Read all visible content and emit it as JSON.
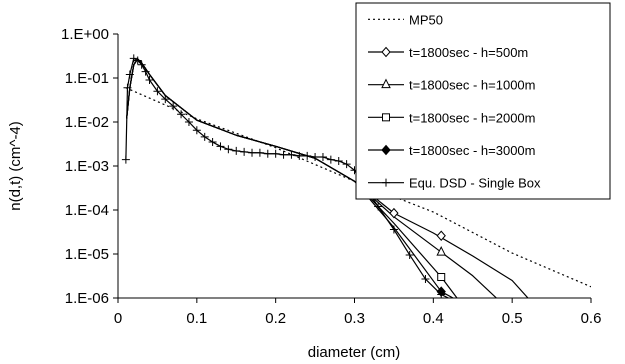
{
  "chart_data": {
    "type": "line",
    "title": "",
    "xlabel": "diameter (cm)",
    "ylabel": "n(d,t) (cm^-4)",
    "xlim": [
      0,
      0.6
    ],
    "x_ticks": [
      0,
      0.1,
      0.2,
      0.3,
      0.4,
      0.5,
      0.6
    ],
    "x_tick_labels": [
      "0",
      "0.1",
      "0.2",
      "0.3",
      "0.4",
      "0.5",
      "0.6"
    ],
    "yscale": "log",
    "ylim": [
      1e-06,
      1
    ],
    "y_ticks": [
      1,
      0.1,
      0.01,
      0.001,
      0.0001,
      1e-05,
      1e-06
    ],
    "y_tick_labels": [
      "1.E+00",
      "1.E-01",
      "1.E-02",
      "1.E-03",
      "1.E-04",
      "1.E-05",
      "1.E-06"
    ],
    "grid": false,
    "legend_position": "top-right",
    "series": [
      {
        "name": "MP50",
        "line_style": "dotted",
        "marker": "none",
        "color": "#000000",
        "x": [
          0.01,
          0.1,
          0.2,
          0.3,
          0.4,
          0.5,
          0.6
        ],
        "y": [
          0.06,
          0.0118,
          0.0026,
          0.00045,
          9e-05,
          1.05e-05,
          1.8e-06
        ]
      },
      {
        "name": "t=1800sec - h=500m",
        "line_style": "solid",
        "marker": "diamond-open",
        "color": "#000000",
        "x": [
          0.011,
          0.015,
          0.02,
          0.025,
          0.03,
          0.04,
          0.06,
          0.1,
          0.15,
          0.2,
          0.25,
          0.3,
          0.35,
          0.4,
          0.45,
          0.5,
          0.52
        ],
        "y": [
          0.012,
          0.06,
          0.2,
          0.27,
          0.22,
          0.12,
          0.04,
          0.011,
          0.005,
          0.0028,
          0.0015,
          0.00045,
          8.5e-05,
          3e-05,
          9e-06,
          2.5e-06,
          1e-06
        ],
        "marker_x": [
          0.35,
          0.41
        ],
        "marker_y": [
          8.5e-05,
          2.6e-05
        ]
      },
      {
        "name": "t=1800sec - h=1000m",
        "line_style": "solid",
        "marker": "triangle-open",
        "color": "#000000",
        "x": [
          0.011,
          0.015,
          0.02,
          0.025,
          0.03,
          0.04,
          0.06,
          0.1,
          0.15,
          0.2,
          0.25,
          0.3,
          0.35,
          0.41,
          0.45,
          0.48
        ],
        "y": [
          0.012,
          0.06,
          0.2,
          0.27,
          0.22,
          0.12,
          0.04,
          0.011,
          0.005,
          0.0028,
          0.0015,
          0.00045,
          7e-05,
          1.1e-05,
          3.2e-06,
          1e-06
        ],
        "marker_x": [
          0.41
        ],
        "marker_y": [
          1.1e-05
        ]
      },
      {
        "name": "t=1800sec - h=2000m",
        "line_style": "solid",
        "marker": "square-open",
        "color": "#000000",
        "x": [
          0.011,
          0.015,
          0.02,
          0.025,
          0.03,
          0.04,
          0.06,
          0.1,
          0.15,
          0.2,
          0.25,
          0.3,
          0.35,
          0.41,
          0.43
        ],
        "y": [
          0.012,
          0.06,
          0.2,
          0.27,
          0.22,
          0.12,
          0.04,
          0.011,
          0.005,
          0.0028,
          0.0015,
          0.00045,
          5e-05,
          3e-06,
          1e-06
        ],
        "marker_x": [
          0.41
        ],
        "marker_y": [
          3e-06
        ]
      },
      {
        "name": "t=1800sec - h=3000m",
        "line_style": "solid",
        "marker": "diamond-filled",
        "color": "#000000",
        "x": [
          0.011,
          0.015,
          0.02,
          0.025,
          0.03,
          0.04,
          0.06,
          0.1,
          0.15,
          0.2,
          0.25,
          0.3,
          0.35,
          0.41,
          0.425
        ],
        "y": [
          0.012,
          0.06,
          0.2,
          0.27,
          0.22,
          0.12,
          0.04,
          0.011,
          0.005,
          0.0028,
          0.0015,
          0.00045,
          4e-05,
          1.4e-06,
          1e-06
        ],
        "marker_x": [
          0.41
        ],
        "marker_y": [
          1.4e-06
        ]
      },
      {
        "name": "Equ. DSD - Single Box",
        "line_style": "solid",
        "marker": "plus",
        "color": "#000000",
        "x": [
          0.01,
          0.012,
          0.015,
          0.02,
          0.025,
          0.03,
          0.035,
          0.04,
          0.05,
          0.06,
          0.07,
          0.08,
          0.09,
          0.1,
          0.11,
          0.12,
          0.13,
          0.14,
          0.15,
          0.16,
          0.17,
          0.18,
          0.19,
          0.2,
          0.21,
          0.22,
          0.23,
          0.24,
          0.25,
          0.26,
          0.27,
          0.28,
          0.29,
          0.3,
          0.31,
          0.32,
          0.33,
          0.35,
          0.37,
          0.39,
          0.41,
          0.43
        ],
        "y": [
          0.0014,
          0.06,
          0.12,
          0.28,
          0.25,
          0.2,
          0.14,
          0.09,
          0.05,
          0.033,
          0.023,
          0.015,
          0.01,
          0.0065,
          0.0046,
          0.0035,
          0.0028,
          0.0024,
          0.0022,
          0.0021,
          0.002,
          0.002,
          0.0019,
          0.0019,
          0.0018,
          0.0018,
          0.0017,
          0.0017,
          0.0016,
          0.0016,
          0.0014,
          0.0013,
          0.0011,
          0.0008,
          0.0004,
          0.00022,
          0.00012,
          3.6e-05,
          9.5e-06,
          2.7e-06,
          1.2e-06,
          8e-07
        ]
      }
    ]
  }
}
